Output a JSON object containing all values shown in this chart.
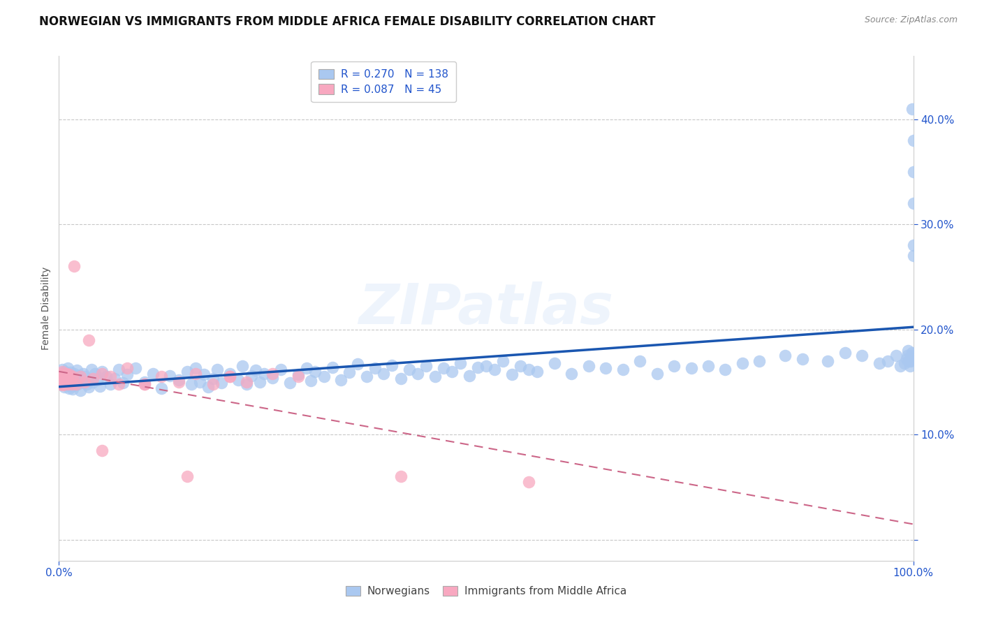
{
  "title": "NORWEGIAN VS IMMIGRANTS FROM MIDDLE AFRICA FEMALE DISABILITY CORRELATION CHART",
  "source": "Source: ZipAtlas.com",
  "ylabel": "Female Disability",
  "xlim": [
    0.0,
    1.0
  ],
  "ylim": [
    -0.02,
    0.46
  ],
  "yticks": [
    0.0,
    0.1,
    0.2,
    0.3,
    0.4
  ],
  "ytick_labels": [
    "",
    "10.0%",
    "20.0%",
    "30.0%",
    "40.0%"
  ],
  "xticks": [
    0.0,
    1.0
  ],
  "xtick_labels": [
    "0.0%",
    "100.0%"
  ],
  "norwegian_R": 0.27,
  "norwegian_N": 138,
  "immigrant_R": 0.087,
  "immigrant_N": 45,
  "norwegian_color": "#aac8f0",
  "norwegian_line_color": "#1a56b0",
  "immigrant_color": "#f8a8c0",
  "immigrant_line_color": "#cc6688",
  "background_color": "#ffffff",
  "grid_color": "#c8c8c8",
  "watermark": "ZIPatlas",
  "legend_R_color": "#2255cc",
  "title_fontsize": 12,
  "axis_label_fontsize": 10,
  "tick_fontsize": 11,
  "legend_fontsize": 11,
  "nor_x": [
    0.002,
    0.003,
    0.004,
    0.005,
    0.005,
    0.006,
    0.007,
    0.007,
    0.008,
    0.009,
    0.01,
    0.01,
    0.011,
    0.012,
    0.012,
    0.013,
    0.014,
    0.015,
    0.015,
    0.016,
    0.017,
    0.018,
    0.019,
    0.02,
    0.021,
    0.022,
    0.023,
    0.025,
    0.026,
    0.028,
    0.03,
    0.032,
    0.035,
    0.038,
    0.04,
    0.042,
    0.045,
    0.048,
    0.05,
    0.055,
    0.06,
    0.065,
    0.07,
    0.075,
    0.08,
    0.09,
    0.1,
    0.11,
    0.12,
    0.13,
    0.14,
    0.15,
    0.155,
    0.16,
    0.165,
    0.17,
    0.175,
    0.18,
    0.185,
    0.19,
    0.2,
    0.21,
    0.215,
    0.22,
    0.225,
    0.23,
    0.235,
    0.24,
    0.25,
    0.26,
    0.27,
    0.28,
    0.29,
    0.295,
    0.3,
    0.31,
    0.32,
    0.33,
    0.34,
    0.35,
    0.36,
    0.37,
    0.38,
    0.39,
    0.4,
    0.41,
    0.42,
    0.43,
    0.44,
    0.45,
    0.46,
    0.47,
    0.48,
    0.49,
    0.5,
    0.51,
    0.52,
    0.53,
    0.54,
    0.55,
    0.56,
    0.58,
    0.6,
    0.62,
    0.64,
    0.66,
    0.68,
    0.7,
    0.72,
    0.74,
    0.76,
    0.78,
    0.8,
    0.82,
    0.85,
    0.87,
    0.9,
    0.92,
    0.94,
    0.96,
    0.97,
    0.98,
    0.985,
    0.99,
    0.992,
    0.993,
    0.994,
    0.995,
    0.996,
    0.997,
    0.998,
    0.999,
    0.999,
    1.0,
    1.0,
    1.0,
    1.0,
    1.0
  ],
  "nor_y": [
    0.155,
    0.148,
    0.162,
    0.151,
    0.158,
    0.145,
    0.153,
    0.16,
    0.147,
    0.156,
    0.15,
    0.163,
    0.149,
    0.157,
    0.144,
    0.152,
    0.159,
    0.146,
    0.155,
    0.143,
    0.15,
    0.158,
    0.147,
    0.153,
    0.161,
    0.148,
    0.156,
    0.142,
    0.15,
    0.158,
    0.155,
    0.148,
    0.145,
    0.162,
    0.15,
    0.158,
    0.152,
    0.146,
    0.16,
    0.155,
    0.148,
    0.153,
    0.162,
    0.149,
    0.157,
    0.163,
    0.15,
    0.158,
    0.144,
    0.156,
    0.152,
    0.16,
    0.148,
    0.163,
    0.15,
    0.157,
    0.145,
    0.153,
    0.162,
    0.149,
    0.158,
    0.152,
    0.165,
    0.148,
    0.156,
    0.161,
    0.15,
    0.158,
    0.154,
    0.162,
    0.149,
    0.157,
    0.163,
    0.151,
    0.16,
    0.155,
    0.164,
    0.152,
    0.159,
    0.167,
    0.155,
    0.163,
    0.158,
    0.166,
    0.153,
    0.162,
    0.158,
    0.165,
    0.155,
    0.163,
    0.16,
    0.168,
    0.156,
    0.164,
    0.165,
    0.162,
    0.17,
    0.157,
    0.165,
    0.162,
    0.16,
    0.168,
    0.158,
    0.165,
    0.163,
    0.162,
    0.17,
    0.158,
    0.165,
    0.163,
    0.165,
    0.162,
    0.168,
    0.17,
    0.175,
    0.172,
    0.17,
    0.178,
    0.175,
    0.168,
    0.17,
    0.175,
    0.165,
    0.168,
    0.172,
    0.175,
    0.18,
    0.17,
    0.165,
    0.17,
    0.175,
    0.178,
    0.41,
    0.27,
    0.32,
    0.28,
    0.38,
    0.35
  ],
  "imm_x": [
    0.001,
    0.001,
    0.002,
    0.002,
    0.003,
    0.003,
    0.004,
    0.004,
    0.005,
    0.005,
    0.006,
    0.007,
    0.008,
    0.009,
    0.01,
    0.011,
    0.012,
    0.013,
    0.015,
    0.016,
    0.018,
    0.02,
    0.025,
    0.03,
    0.035,
    0.04,
    0.05,
    0.06,
    0.07,
    0.08,
    0.1,
    0.12,
    0.14,
    0.16,
    0.18,
    0.2,
    0.22,
    0.25,
    0.28,
    0.05,
    0.1,
    0.15,
    0.2,
    0.4,
    0.55
  ],
  "imm_y": [
    0.155,
    0.148,
    0.15,
    0.158,
    0.148,
    0.155,
    0.152,
    0.16,
    0.147,
    0.153,
    0.148,
    0.155,
    0.15,
    0.158,
    0.148,
    0.153,
    0.157,
    0.15,
    0.148,
    0.155,
    0.26,
    0.148,
    0.155,
    0.15,
    0.19,
    0.153,
    0.158,
    0.155,
    0.148,
    0.163,
    0.148,
    0.155,
    0.15,
    0.158,
    0.148,
    0.155,
    0.15,
    0.158,
    0.155,
    0.085,
    0.148,
    0.06,
    0.155,
    0.06,
    0.055
  ]
}
